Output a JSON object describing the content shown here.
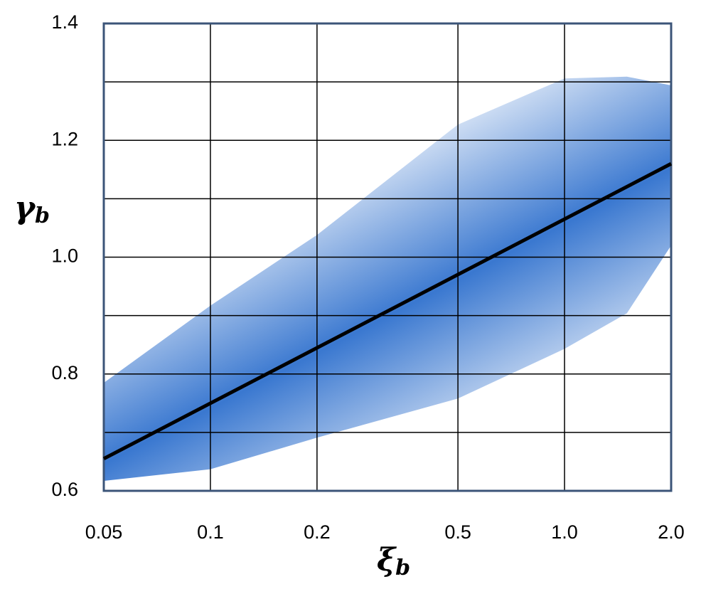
{
  "chart_data": {
    "type": "line",
    "xlabel": "ξ",
    "xlabel_sub": "b",
    "ylabel": "γ",
    "ylabel_sub": "b",
    "x": [
      0.05,
      2.0
    ],
    "series": [
      {
        "color": "#000000",
        "values": [
          0.655,
          1.16
        ]
      }
    ],
    "band": {
      "color": "#3a78d0",
      "x": [
        0.05,
        0.1,
        0.2,
        0.5,
        1.0,
        1.5,
        2.0
      ],
      "upper": [
        0.785,
        0.917,
        1.038,
        1.227,
        1.306,
        1.309,
        1.294
      ],
      "lower": [
        0.617,
        0.637,
        0.691,
        0.758,
        0.843,
        0.904,
        1.02
      ]
    },
    "xscale": "log",
    "xlim": [
      0.05,
      2.0
    ],
    "xticks": [
      0.05,
      0.1,
      0.2,
      0.5,
      {
        "value": 1,
        "label": "1.0"
      },
      {
        "value": 2,
        "label": "2.0"
      }
    ],
    "ylim": [
      0.6,
      1.4
    ],
    "yticks": [
      0.6,
      0.8,
      {
        "value": 1,
        "label": "1.0"
      },
      1.2,
      1.4
    ],
    "ygrid": [
      0.7,
      0.9,
      1.1,
      1.3
    ],
    "grid": true
  }
}
